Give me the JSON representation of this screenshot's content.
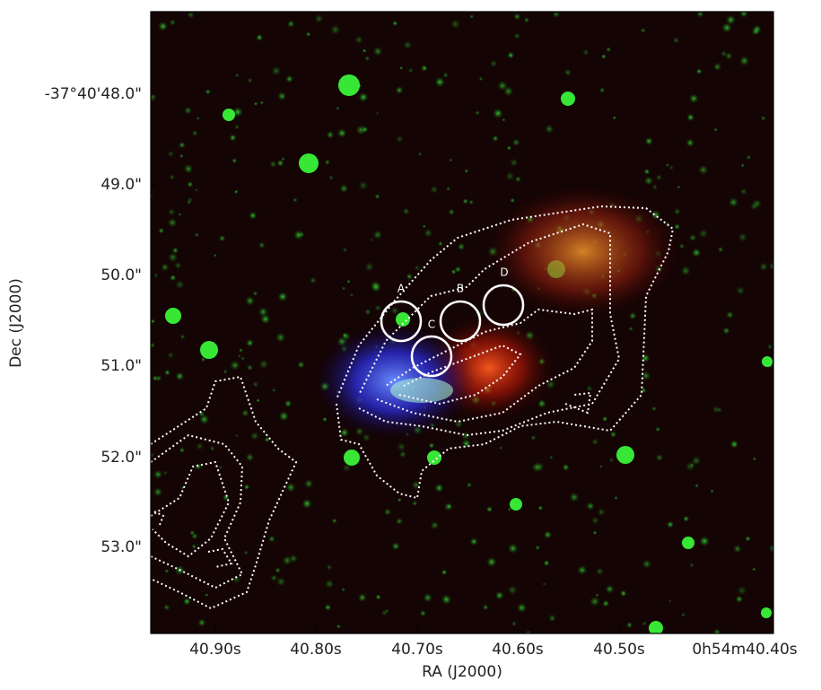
{
  "x_axis": {
    "label": "RA (J2000)",
    "ticks": [
      "40.90s",
      "40.80s",
      "40.70s",
      "40.60s",
      "40.50s",
      "0h54m40.40s"
    ]
  },
  "y_axis": {
    "label": "Dec (J2000)",
    "ticks": [
      "-37°40'48.0\"",
      "49.0\"",
      "50.0\"",
      "51.0\"",
      "52.0\"",
      "53.0\""
    ]
  },
  "apertures": [
    {
      "label": "A"
    },
    {
      "label": "B"
    },
    {
      "label": "C"
    },
    {
      "label": "D"
    }
  ]
}
